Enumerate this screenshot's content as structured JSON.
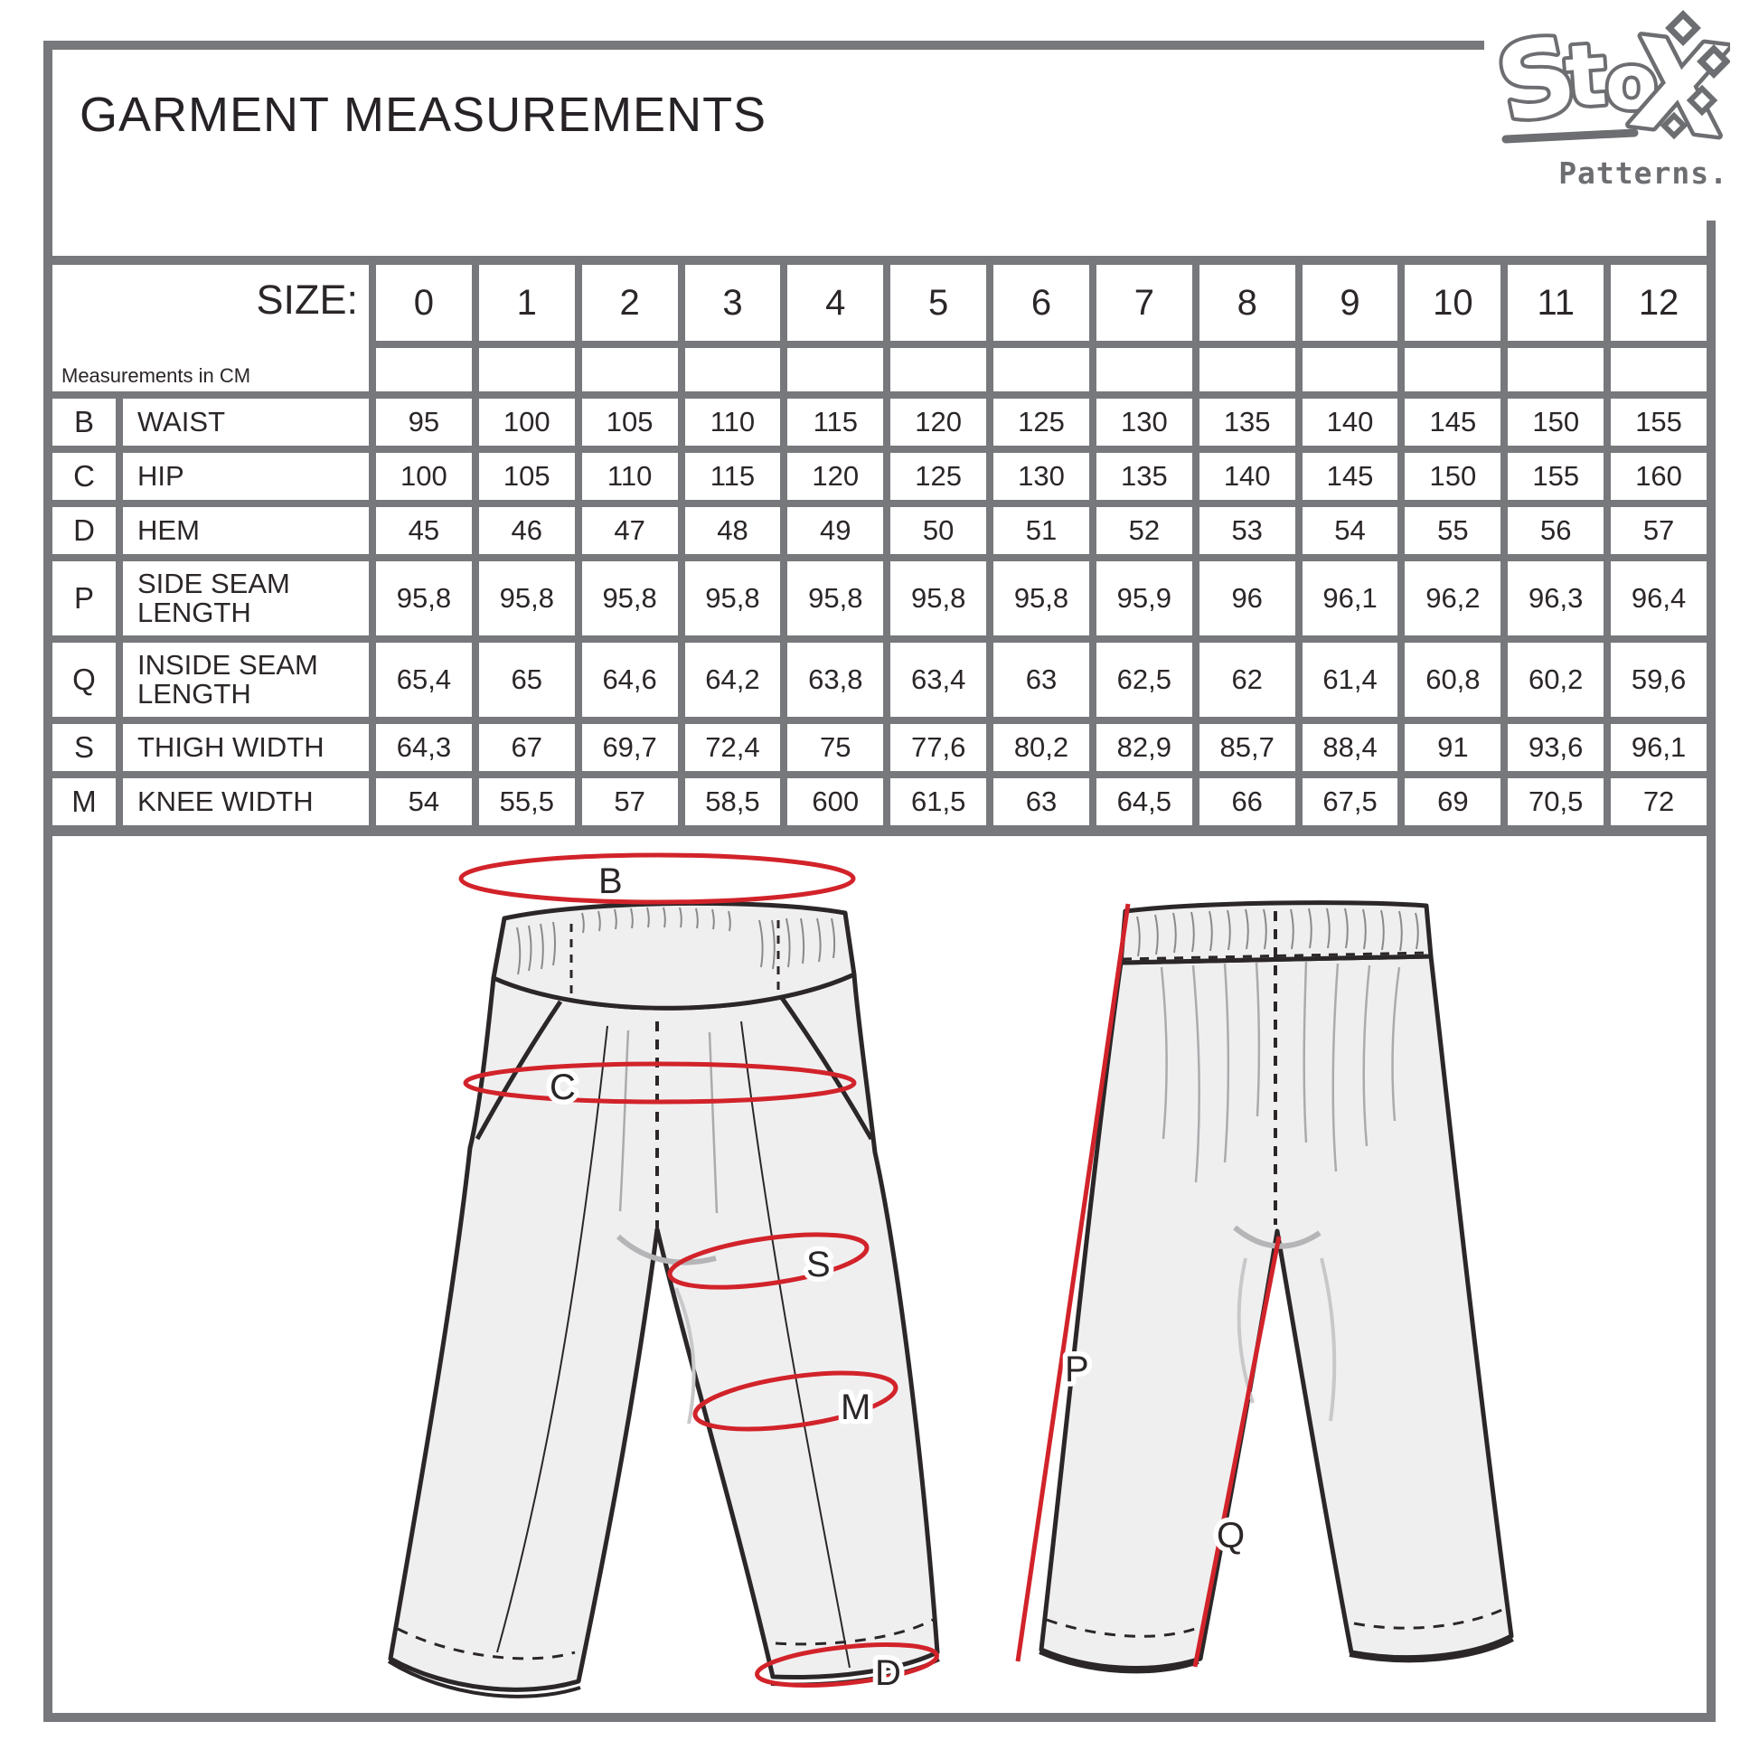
{
  "page": {
    "title": "GARMENT MEASUREMENTS"
  },
  "logo": {
    "brand": "Stox",
    "wordmark": "Patterns."
  },
  "table": {
    "size_label": "SIZE:",
    "note": "Measurements in CM",
    "sizes": [
      "0",
      "1",
      "2",
      "3",
      "4",
      "5",
      "6",
      "7",
      "8",
      "9",
      "10",
      "11",
      "12"
    ],
    "rows": [
      {
        "code": "B",
        "label": "WAIST",
        "values": [
          "95",
          "100",
          "105",
          "110",
          "115",
          "120",
          "125",
          "130",
          "135",
          "140",
          "145",
          "150",
          "155"
        ]
      },
      {
        "code": "C",
        "label": "HIP",
        "values": [
          "100",
          "105",
          "110",
          "115",
          "120",
          "125",
          "130",
          "135",
          "140",
          "145",
          "150",
          "155",
          "160"
        ]
      },
      {
        "code": "D",
        "label": "HEM",
        "values": [
          "45",
          "46",
          "47",
          "48",
          "49",
          "50",
          "51",
          "52",
          "53",
          "54",
          "55",
          "56",
          "57"
        ]
      },
      {
        "code": "P",
        "label": "SIDE SEAM LENGTH",
        "values": [
          "95,8",
          "95,8",
          "95,8",
          "95,8",
          "95,8",
          "95,8",
          "95,8",
          "95,9",
          "96",
          "96,1",
          "96,2",
          "96,3",
          "96,4"
        ]
      },
      {
        "code": "Q",
        "label": "INSIDE SEAM LENGTH",
        "values": [
          "65,4",
          "65",
          "64,6",
          "64,2",
          "63,8",
          "63,4",
          "63",
          "62,5",
          "62",
          "61,4",
          "60,8",
          "60,2",
          "59,6"
        ]
      },
      {
        "code": "S",
        "label": "THIGH WIDTH",
        "values": [
          "64,3",
          "67",
          "69,7",
          "72,4",
          "75",
          "77,6",
          "80,2",
          "82,9",
          "85,7",
          "88,4",
          "91",
          "93,6",
          "96,1"
        ]
      },
      {
        "code": "M",
        "label": "KNEE WIDTH",
        "values": [
          "54",
          "55,5",
          "57",
          "58,5",
          "600",
          "61,5",
          "63",
          "64,5",
          "66",
          "67,5",
          "69",
          "70,5",
          "72"
        ]
      }
    ]
  },
  "diagram": {
    "labels": {
      "b": "B",
      "c": "C",
      "s": "S",
      "m": "M",
      "d": "D",
      "p": "P",
      "q": "Q"
    }
  },
  "colors": {
    "grid_gray": "#77787b",
    "accent_red": "#d2232a",
    "logo_gray": "#6d6e71",
    "garment_fill": "#f0eff0",
    "line_dark": "#2b2729"
  }
}
